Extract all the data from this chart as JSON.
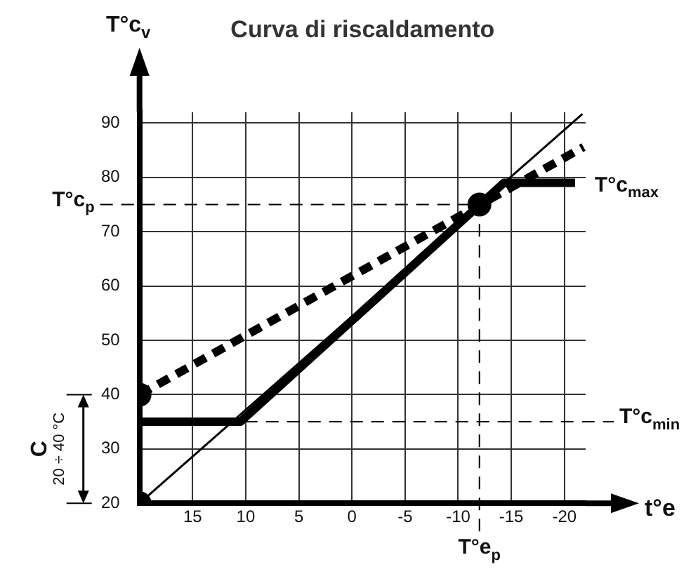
{
  "chart_data": {
    "type": "line",
    "title": "Curva di riscaldamento",
    "xlabel": "t°e",
    "ylabel": "T°c$_{v}$",
    "xlim": [
      20,
      -22
    ],
    "ylim": [
      20,
      92
    ],
    "xticks": [
      15,
      10,
      5,
      0,
      -5,
      -10,
      -15,
      -20
    ],
    "yticks": [
      20,
      30,
      40,
      50,
      60,
      70,
      80,
      90
    ],
    "grid": true,
    "legend": false,
    "marker": "none",
    "series": [
      {
        "color": "#000000",
        "x": [
          20,
          -21.7
        ],
        "values": [
          20,
          91.7
        ]
      },
      {
        "color": "#000000",
        "x": [
          20,
          10.5,
          -14.3,
          -21
        ],
        "values": [
          35,
          35,
          79,
          79
        ]
      },
      {
        "color": "#000000",
        "line_style": "dashed",
        "x": [
          20,
          -21.8
        ],
        "values": [
          40,
          85.6
        ]
      },
      {
        "type": "scatter",
        "color": "#000000",
        "marker": "circle",
        "x": [
          20,
          20,
          -12
        ],
        "values": [
          20,
          40,
          75
        ]
      }
    ],
    "ref_lines": [
      {
        "axis": "y",
        "value": 75,
        "label": "T°c$_{p}$",
        "line_style": "dashed",
        "color": "#000000"
      },
      {
        "axis": "y",
        "value": 35,
        "label": "T°c$_{min}$",
        "line_style": "dashed",
        "color": "#000000"
      },
      {
        "axis": "x",
        "value": -12,
        "label": "T°e$_{p}$",
        "line_style": "dashed",
        "color": "#000000"
      }
    ],
    "annotations": [
      "C",
      "20 ÷ 40 °C",
      {
        "text": "T°c$_{max}$",
        "x": -21,
        "y": 79
      }
    ]
  }
}
